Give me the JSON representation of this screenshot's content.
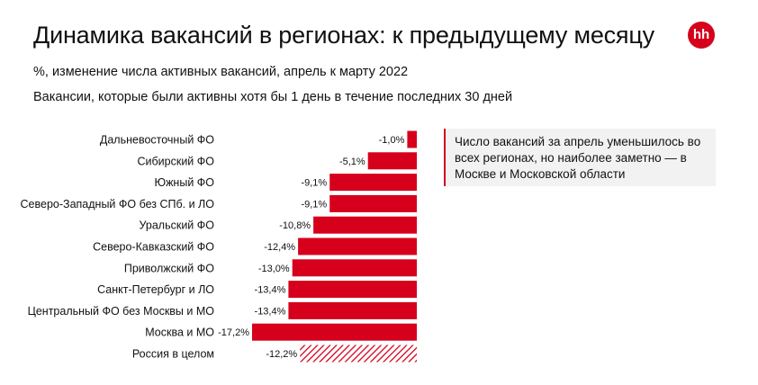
{
  "header": {
    "title": "Динамика вакансий в регионах: к предыдущему месяцу",
    "subtitle": "%, изменение числа активных вакансий, апрель к марту 2022",
    "subtitle2": "Вакансии, которые были активны хотя бы 1 день в течение последних 30 дней",
    "logo_text": "hh"
  },
  "note": {
    "text": "Число вакансий за апрель уменьшилось во всех регионах, но наиболее заметно — в Москве и Московской области"
  },
  "colors": {
    "accent": "#d6001c",
    "note_bg": "#f2f2f2"
  },
  "chart_data": {
    "type": "bar",
    "orientation": "horizontal",
    "title": "Динамика вакансий в регионах: к предыдущему месяцу",
    "xlabel": "",
    "ylabel": "",
    "xlim": [
      -17.2,
      0
    ],
    "categories": [
      "Дальневосточный ФО",
      "Сибирский ФО",
      "Южный ФО",
      "Северо-Западный ФО без СПб. и ЛО",
      "Уральский ФО",
      "Северо-Кавказский ФО",
      "Приволжский ФО",
      "Санкт-Петербург и ЛО",
      "Центральный ФО без Москвы и МО",
      "Москва и МО",
      "Россия в целом"
    ],
    "values": [
      -1.0,
      -5.1,
      -9.1,
      -9.1,
      -10.8,
      -12.4,
      -13.0,
      -13.4,
      -13.4,
      -17.2,
      -12.2
    ],
    "labels": [
      "-1,0%",
      "-5,1%",
      "-9,1%",
      "-9,1%",
      "-10,8%",
      "-12,4%",
      "-13,0%",
      "-13,4%",
      "-13,4%",
      "-17,2%",
      "-12,2%"
    ],
    "hatched": [
      false,
      false,
      false,
      false,
      false,
      false,
      false,
      false,
      false,
      false,
      true
    ]
  }
}
